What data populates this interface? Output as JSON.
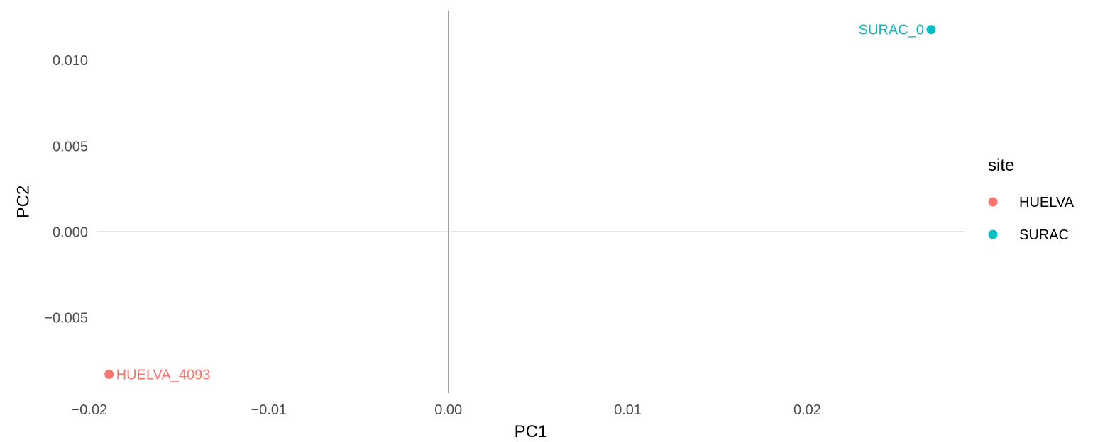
{
  "chart_data": {
    "type": "scatter",
    "title": "",
    "xlabel": "PC1",
    "ylabel": "PC2",
    "xlim": [
      -0.0196,
      0.0288
    ],
    "ylim": [
      -0.0094,
      0.0129
    ],
    "x_ticks": [
      -0.02,
      -0.01,
      0.0,
      0.01,
      0.02
    ],
    "x_tick_labels": [
      "−0.02",
      "−0.01",
      "0.00",
      "0.01",
      "0.02"
    ],
    "y_ticks": [
      -0.005,
      0.0,
      0.005,
      0.01
    ],
    "y_tick_labels": [
      "−0.005",
      "0.000",
      "0.005",
      "0.010"
    ],
    "grid": false,
    "reference_lines": {
      "x": 0,
      "y": 0
    },
    "legend": {
      "title": "site",
      "placement": "right",
      "entries": [
        {
          "name": "HUELVA",
          "color": "#F8766D"
        },
        {
          "name": "SURAC",
          "color": "#00BFC4"
        }
      ]
    },
    "points": [
      {
        "x": -0.0189,
        "y": -0.0083,
        "label": "HUELVA_4093",
        "site": "HUELVA",
        "color": "#F8766D",
        "label_side": "right"
      },
      {
        "x": 0.0269,
        "y": 0.0118,
        "label": "SURAC_0",
        "site": "SURAC",
        "color": "#00BFC4",
        "label_side": "left"
      }
    ]
  }
}
